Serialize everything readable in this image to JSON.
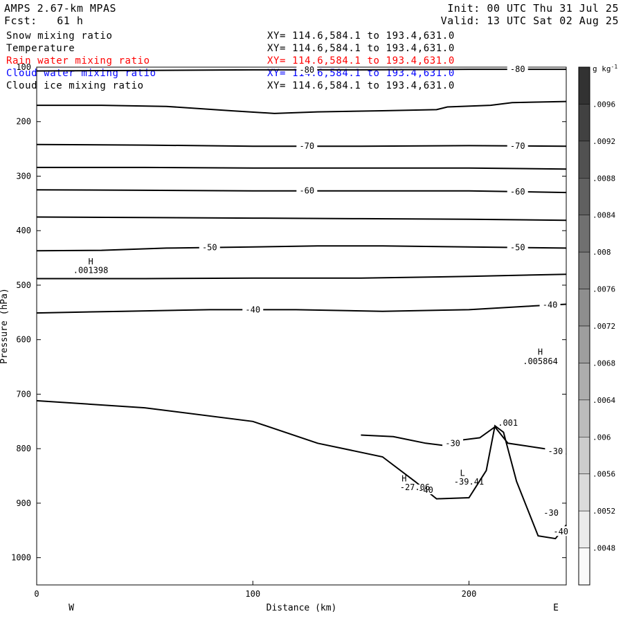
{
  "header": {
    "model": "AMPS 2.67-km MPAS",
    "fcst": "Fcst:   61 h",
    "init": "Init: 00 UTC Thu 31 Jul 25",
    "valid": "Valid: 13 UTC Sat 02 Aug 25"
  },
  "fields": [
    {
      "name": "Snow mixing ratio",
      "xy": "XY= 114.6,584.1 to 193.4,631.0",
      "color": "#000000"
    },
    {
      "name": "Temperature",
      "xy": "XY= 114.6,584.1 to 193.4,631.0",
      "color": "#000000"
    },
    {
      "name": "Rain water mixing ratio",
      "xy": "XY= 114.6,584.1 to 193.4,631.0",
      "color": "#ff0000"
    },
    {
      "name": "Cloud water mixing ratio",
      "xy": "XY= 114.6,584.1 to 193.4,631.0",
      "color": "#0000ff"
    },
    {
      "name": "Cloud ice mixing ratio",
      "xy": "XY= 114.6,584.1 to 193.4,631.0",
      "color": "#000000"
    }
  ],
  "chart_data": {
    "type": "contour",
    "xlabel": "Distance (km)",
    "ylabel": "Pressure (hPa)",
    "xlim": [
      0,
      245
    ],
    "ylim": [
      1050,
      100
    ],
    "xticks": [
      0,
      100,
      200
    ],
    "yticks": [
      100,
      200,
      300,
      400,
      500,
      600,
      700,
      800,
      900,
      1000
    ],
    "x_end_labels": {
      "left": "W",
      "right": "E"
    },
    "colorbar": {
      "unit_label": "g kg",
      "unit_exponent": "-1",
      "ticks": [
        ".0096",
        ".0092",
        ".0088",
        ".0084",
        ".008",
        ".0076",
        ".0072",
        ".0068",
        ".0064",
        ".006",
        ".0056",
        ".0052",
        ".0048"
      ]
    },
    "temperature_contours": [
      {
        "label": "-80",
        "points": [
          [
            0,
            107
          ],
          [
            50,
            106
          ],
          [
            100,
            105
          ],
          [
            150,
            105
          ],
          [
            200,
            104
          ],
          [
            245,
            104
          ]
        ]
      },
      {
        "label": "",
        "points": [
          [
            0,
            170
          ],
          [
            30,
            170
          ],
          [
            60,
            172
          ],
          [
            90,
            180
          ],
          [
            110,
            185
          ],
          [
            130,
            182
          ],
          [
            160,
            180
          ],
          [
            185,
            178
          ],
          [
            190,
            173
          ],
          [
            210,
            170
          ],
          [
            220,
            165
          ],
          [
            245,
            163
          ]
        ]
      },
      {
        "label": "-70",
        "points": [
          [
            0,
            242
          ],
          [
            50,
            243
          ],
          [
            100,
            245
          ],
          [
            150,
            245
          ],
          [
            200,
            244
          ],
          [
            245,
            245
          ]
        ]
      },
      {
        "label": "",
        "points": [
          [
            0,
            284
          ],
          [
            50,
            284
          ],
          [
            100,
            285
          ],
          [
            150,
            285
          ],
          [
            200,
            285
          ],
          [
            245,
            287
          ]
        ]
      },
      {
        "label": "-60",
        "points": [
          [
            0,
            325
          ],
          [
            50,
            326
          ],
          [
            100,
            327
          ],
          [
            150,
            327
          ],
          [
            200,
            327
          ],
          [
            245,
            330
          ]
        ]
      },
      {
        "label": "",
        "points": [
          [
            0,
            375
          ],
          [
            50,
            376
          ],
          [
            100,
            377
          ],
          [
            150,
            378
          ],
          [
            200,
            379
          ],
          [
            245,
            381
          ]
        ]
      },
      {
        "label": "-50",
        "points": [
          [
            0,
            437
          ],
          [
            30,
            436
          ],
          [
            60,
            432
          ],
          [
            100,
            430
          ],
          [
            130,
            428
          ],
          [
            160,
            428
          ],
          [
            200,
            430
          ],
          [
            245,
            432
          ]
        ]
      },
      {
        "label": "",
        "points": [
          [
            0,
            488
          ],
          [
            50,
            488
          ],
          [
            100,
            487
          ],
          [
            150,
            487
          ],
          [
            200,
            484
          ],
          [
            245,
            480
          ]
        ]
      },
      {
        "label": "-40",
        "points": [
          [
            0,
            551
          ],
          [
            40,
            548
          ],
          [
            80,
            545
          ],
          [
            120,
            545
          ],
          [
            160,
            548
          ],
          [
            200,
            545
          ],
          [
            230,
            538
          ],
          [
            245,
            535
          ]
        ]
      },
      {
        "label": "-40",
        "points": [
          [
            0,
            712
          ],
          [
            50,
            725
          ],
          [
            100,
            750
          ],
          [
            130,
            790
          ],
          [
            160,
            815
          ],
          [
            175,
            860
          ],
          [
            185,
            892
          ],
          [
            200,
            890
          ],
          [
            208,
            840
          ],
          [
            212,
            758
          ],
          [
            216,
            770
          ],
          [
            222,
            860
          ],
          [
            232,
            960
          ],
          [
            240,
            965
          ],
          [
            245,
            940
          ]
        ]
      },
      {
        "label": "-30",
        "points": [
          [
            150,
            775
          ],
          [
            165,
            778
          ],
          [
            180,
            790
          ],
          [
            190,
            795
          ],
          [
            195,
            785
          ],
          [
            205,
            780
          ],
          [
            212,
            760
          ],
          [
            218,
            790
          ],
          [
            235,
            800
          ],
          [
            245,
            810
          ]
        ]
      }
    ],
    "mixing_ratio_labels": [
      {
        "text": "H",
        "x": 25,
        "y": 462
      },
      {
        "text": ".001398",
        "x": 25,
        "y": 478
      },
      {
        "text": "H",
        "x": 233,
        "y": 628
      },
      {
        "text": ".005864",
        "x": 233,
        "y": 645
      },
      {
        "text": ".001",
        "x": 218,
        "y": 758
      },
      {
        "text": "H",
        "x": 170,
        "y": 860
      },
      {
        "text": "-27.06",
        "x": 175,
        "y": 876
      },
      {
        "text": "L",
        "x": 197,
        "y": 850
      },
      {
        "text": "-39.41",
        "x": 200,
        "y": 866
      },
      {
        "text": "-30",
        "x": 238,
        "y": 923
      }
    ],
    "grid": false
  }
}
